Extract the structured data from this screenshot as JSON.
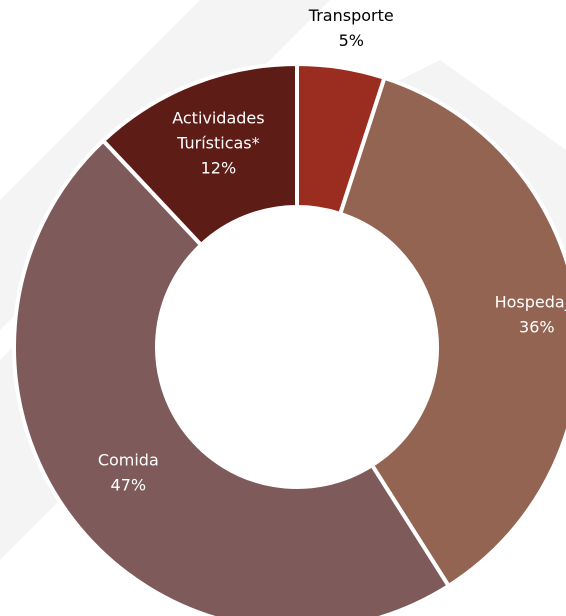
{
  "chart_data": {
    "type": "pie",
    "donut": true,
    "slices": [
      {
        "name": "Transporte",
        "label_lines": [
          "Transporte"
        ],
        "value": 5,
        "value_label": "5%",
        "color": "#9b2d20",
        "label_color": "#000000",
        "label_position": "outside"
      },
      {
        "name": "Hospedaje",
        "label_lines": [
          "Hospedaje"
        ],
        "value": 36,
        "value_label": "36%",
        "color": "#946452",
        "label_color": "#ffffff",
        "label_position": "inside"
      },
      {
        "name": "Comida",
        "label_lines": [
          "Comida"
        ],
        "value": 47,
        "value_label": "47%",
        "color": "#7e5a5a",
        "label_color": "#ffffff",
        "label_position": "inside"
      },
      {
        "name": "Actividades Turísticas*",
        "label_lines": [
          "Actividades",
          "Turísticas*"
        ],
        "value": 12,
        "value_label": "12%",
        "color": "#5e1c16",
        "label_color": "#ffffff",
        "label_position": "inside"
      }
    ]
  }
}
